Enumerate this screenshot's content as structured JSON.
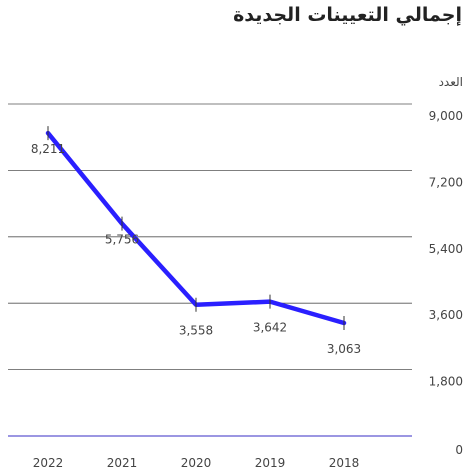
{
  "chart_data": {
    "type": "line",
    "title": "إجمالي التعيينات الجديدة",
    "ylabel": "العدد",
    "xlabel": "",
    "x": [
      "2022",
      "2021",
      "2020",
      "2019",
      "2018"
    ],
    "series": [
      {
        "values": [
          8211,
          5756,
          3558,
          3642,
          3063
        ]
      }
    ],
    "data_labels": [
      "8,211",
      "5,756",
      "3,558",
      "3,642",
      "3,063"
    ],
    "y_ticks": [
      0,
      1800,
      3600,
      5400,
      7200,
      9000
    ],
    "y_tick_labels": [
      "0",
      "1,800",
      "3,600",
      "5,400",
      "7,200",
      "9,000"
    ],
    "ylim": [
      0,
      9000
    ],
    "grid": true,
    "legend": "none",
    "colors": {
      "line": "#2a1fff",
      "grid": "#555555",
      "baseline": "#7a73d8"
    }
  }
}
